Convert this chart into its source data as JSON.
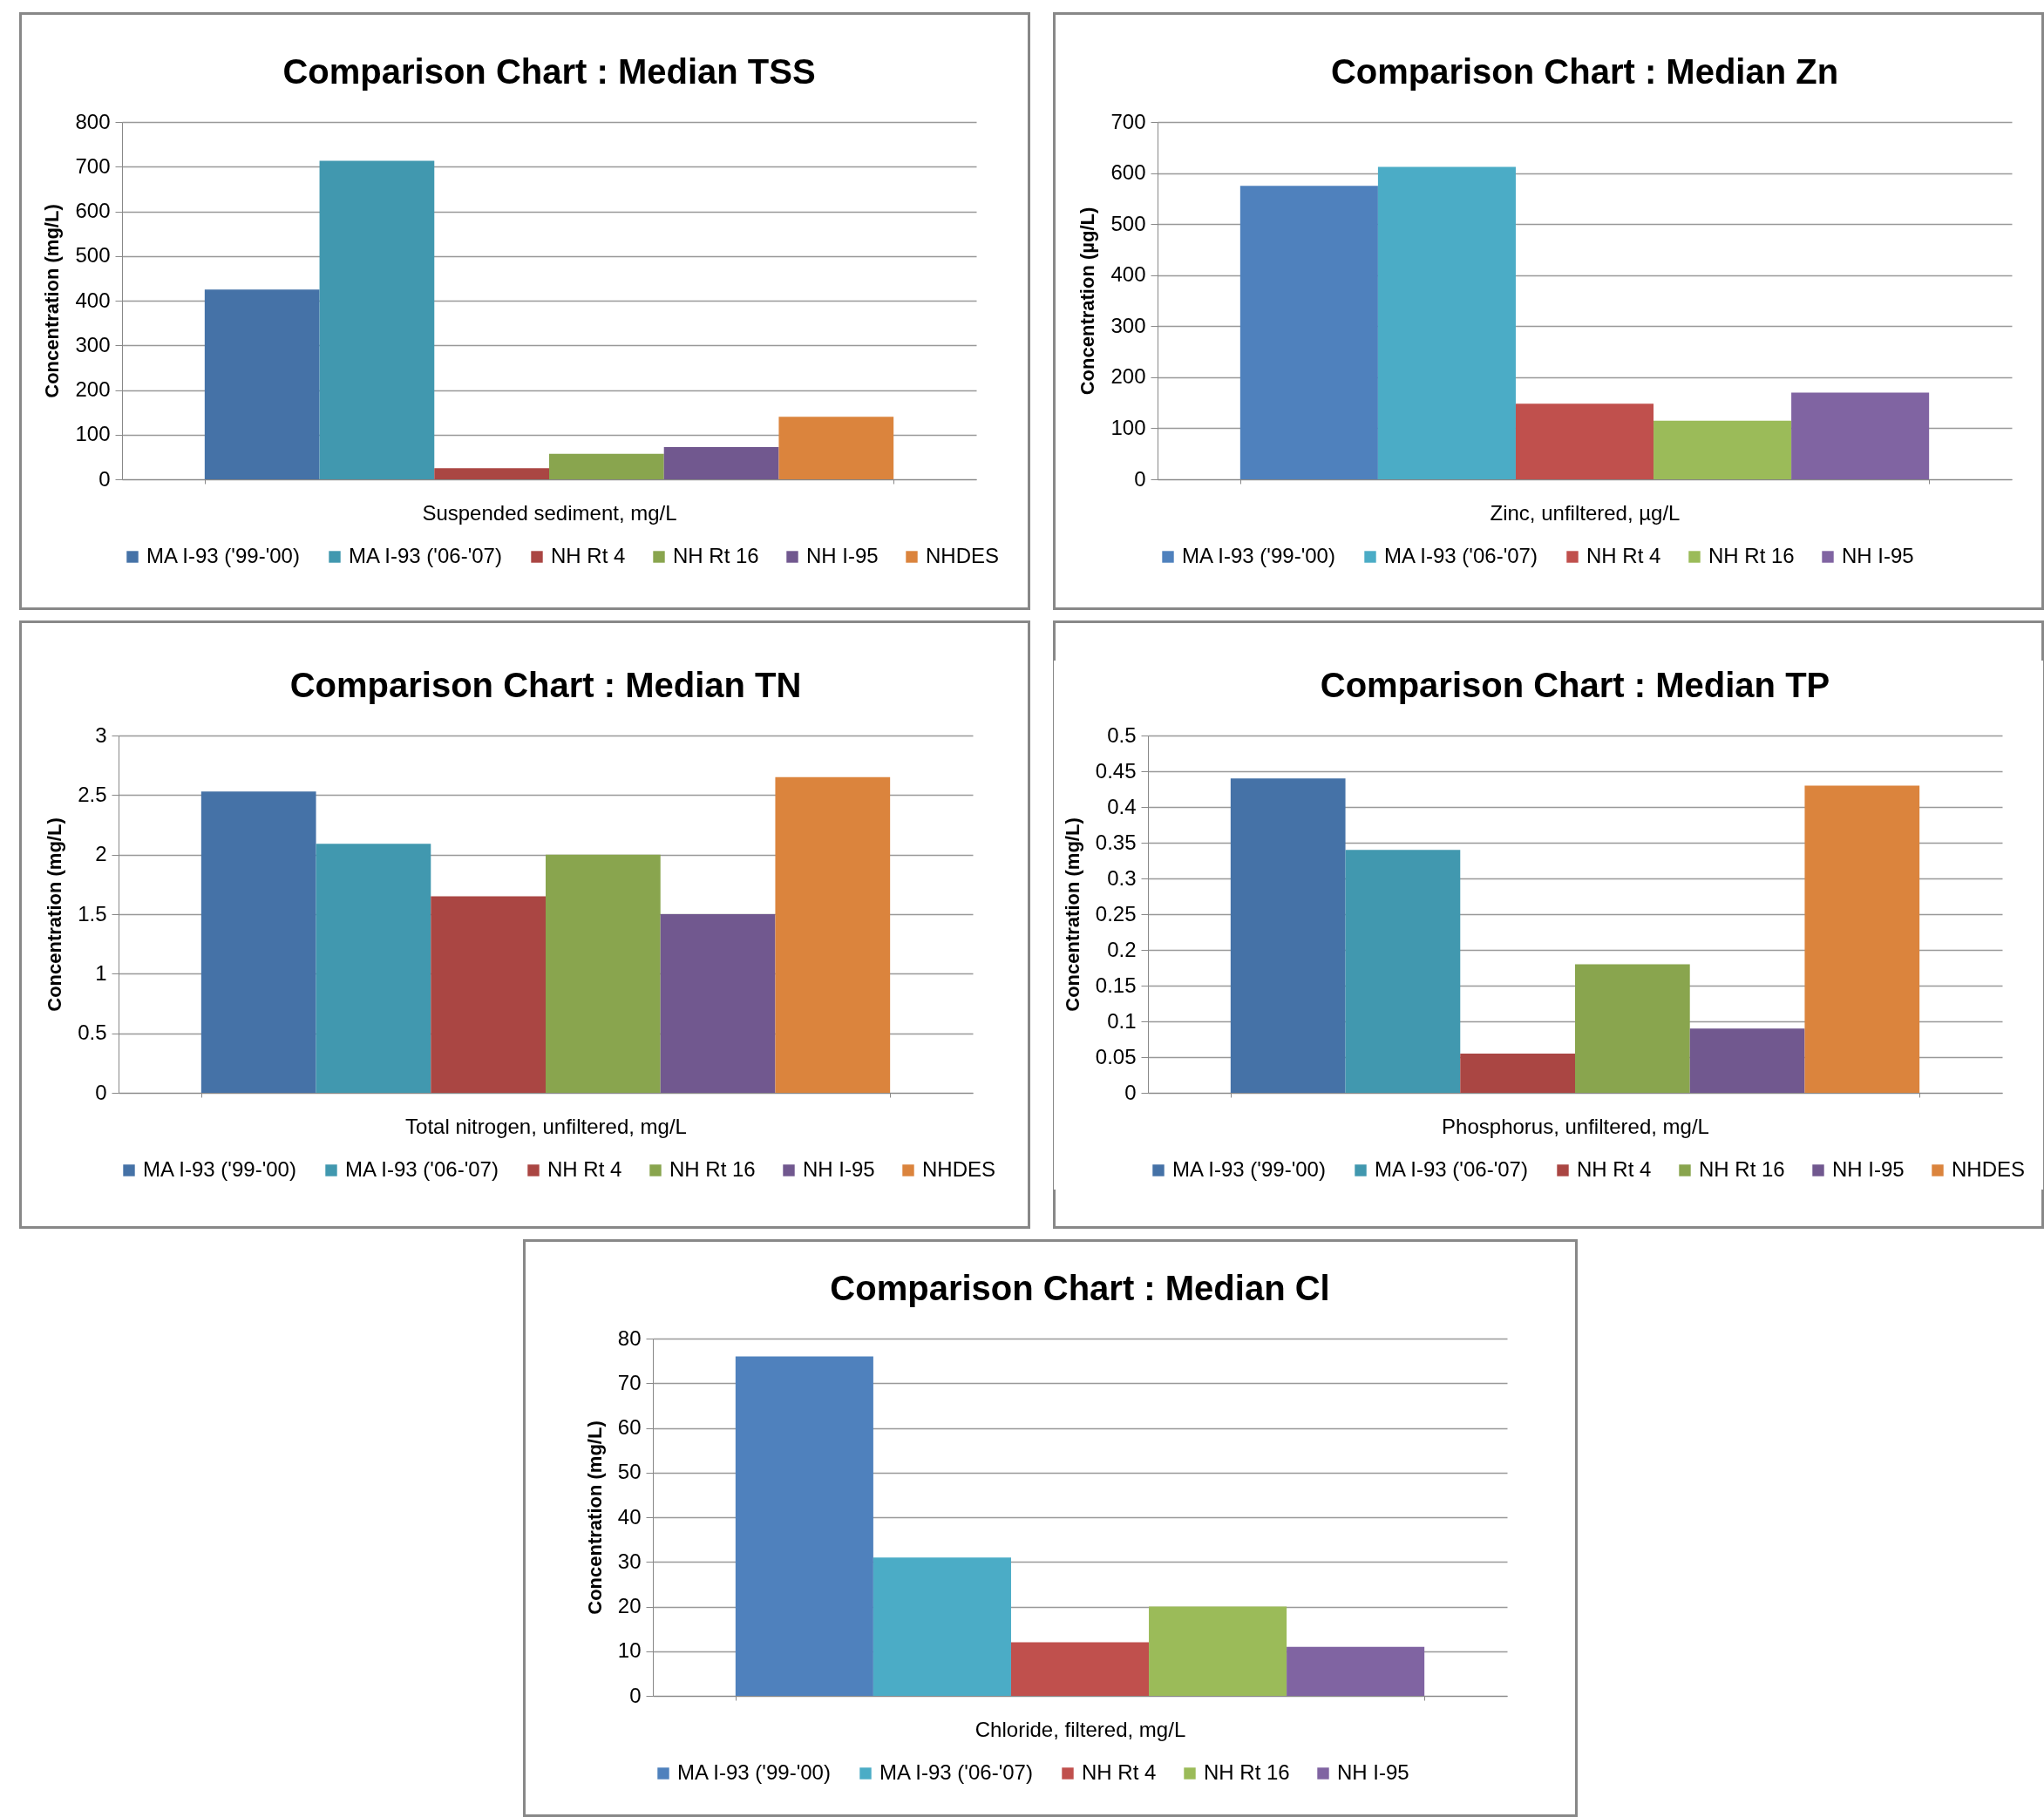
{
  "chart_data": [
    {
      "type": "bar",
      "title": "Comparison Chart : Median TSS",
      "ylabel": "Concentration (mg/L)",
      "categories": [
        "Suspended sediment, mg/L"
      ],
      "ylim": [
        0,
        800
      ],
      "yticks": [
        0,
        100,
        200,
        300,
        400,
        500,
        600,
        700,
        800
      ],
      "grid": "y",
      "legend": "bottom",
      "series": [
        {
          "name": "MA I-93 ('99-'00)",
          "color": "#4572a7",
          "values": [
            425
          ]
        },
        {
          "name": "MA I-93 ('06-'07)",
          "color": "#4198af",
          "values": [
            713
          ]
        },
        {
          "name": "NH Rt 4",
          "color": "#aa4643",
          "values": [
            25
          ]
        },
        {
          "name": "NH Rt 16",
          "color": "#89a54e",
          "values": [
            57
          ]
        },
        {
          "name": "NH I-95",
          "color": "#71588f",
          "values": [
            72
          ]
        },
        {
          "name": "NHDES",
          "color": "#db843d",
          "values": [
            140
          ]
        }
      ]
    },
    {
      "type": "bar",
      "title": "Comparison Chart : Median Zn",
      "ylabel": "Concentration (µg/L)",
      "categories": [
        "Zinc, unfiltered, µg/L"
      ],
      "ylim": [
        0,
        700
      ],
      "yticks": [
        0,
        100,
        200,
        300,
        400,
        500,
        600,
        700
      ],
      "grid": "y",
      "legend": "bottom",
      "series": [
        {
          "name": "MA I-93 ('99-'00)",
          "color": "#4f81bd",
          "values": [
            575
          ]
        },
        {
          "name": "MA I-93 ('06-'07)",
          "color": "#4bacc6",
          "values": [
            612
          ]
        },
        {
          "name": "NH Rt 4",
          "color": "#c0504d",
          "values": [
            148
          ]
        },
        {
          "name": "NH Rt 16",
          "color": "#9bbb59",
          "values": [
            115
          ]
        },
        {
          "name": "NH I-95",
          "color": "#8064a2",
          "values": [
            170
          ]
        }
      ]
    },
    {
      "type": "bar",
      "title": "Comparison Chart : Median TN",
      "ylabel": "Concentration (mg/L)",
      "categories": [
        "Total nitrogen, unfiltered, mg/L"
      ],
      "ylim": [
        0,
        3
      ],
      "yticks": [
        0,
        0.5,
        1,
        1.5,
        2,
        2.5,
        3
      ],
      "grid": "y",
      "legend": "bottom",
      "series": [
        {
          "name": "MA I-93 ('99-'00)",
          "color": "#4572a7",
          "values": [
            2.53
          ]
        },
        {
          "name": "MA I-93 ('06-'07)",
          "color": "#4198af",
          "values": [
            2.09
          ]
        },
        {
          "name": "NH Rt 4",
          "color": "#aa4643",
          "values": [
            1.65
          ]
        },
        {
          "name": "NH Rt 16",
          "color": "#89a54e",
          "values": [
            2.0
          ]
        },
        {
          "name": "NH I-95",
          "color": "#71588f",
          "values": [
            1.5
          ]
        },
        {
          "name": "NHDES",
          "color": "#db843d",
          "values": [
            2.65
          ]
        }
      ]
    },
    {
      "type": "bar",
      "title": "Comparison Chart : Median TP",
      "ylabel": "Concentration (mg/L)",
      "categories": [
        "Phosphorus, unfiltered, mg/L"
      ],
      "ylim": [
        0,
        0.5
      ],
      "yticks": [
        0,
        0.05,
        0.1,
        0.15,
        0.2,
        0.25,
        0.3,
        0.35,
        0.4,
        0.45,
        0.5
      ],
      "grid": "y",
      "legend": "bottom",
      "series": [
        {
          "name": "MA I-93 ('99-'00)",
          "color": "#4572a7",
          "values": [
            0.44
          ]
        },
        {
          "name": "MA I-93 ('06-'07)",
          "color": "#4198af",
          "values": [
            0.34
          ]
        },
        {
          "name": "NH Rt 4",
          "color": "#aa4643",
          "values": [
            0.055
          ]
        },
        {
          "name": "NH Rt 16",
          "color": "#89a54e",
          "values": [
            0.18
          ]
        },
        {
          "name": "NH I-95",
          "color": "#71588f",
          "values": [
            0.09
          ]
        },
        {
          "name": "NHDES",
          "color": "#db843d",
          "values": [
            0.43
          ]
        }
      ]
    },
    {
      "type": "bar",
      "title": "Comparison Chart : Median Cl",
      "ylabel": "Concentration (mg/L)",
      "categories": [
        "Chloride, filtered, mg/L"
      ],
      "ylim": [
        0,
        80
      ],
      "yticks": [
        0,
        10,
        20,
        30,
        40,
        50,
        60,
        70,
        80
      ],
      "grid": "y",
      "legend": "bottom",
      "series": [
        {
          "name": "MA I-93 ('99-'00)",
          "color": "#4f81bd",
          "values": [
            76
          ]
        },
        {
          "name": "MA I-93 ('06-'07)",
          "color": "#4bacc6",
          "values": [
            31
          ]
        },
        {
          "name": "NH Rt 4",
          "color": "#c0504d",
          "values": [
            12
          ]
        },
        {
          "name": "NH Rt 16",
          "color": "#9bbb59",
          "values": [
            20
          ]
        },
        {
          "name": "NH I-95",
          "color": "#8064a2",
          "values": [
            11
          ]
        }
      ]
    }
  ]
}
